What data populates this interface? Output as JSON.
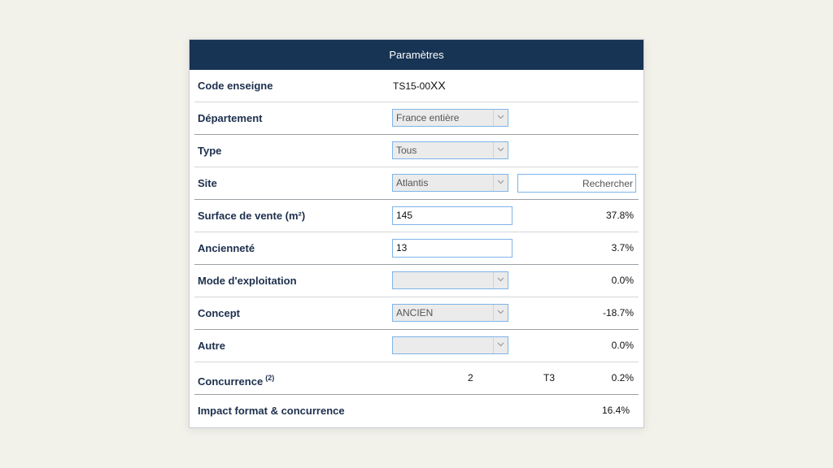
{
  "header": {
    "title": "Paramètres"
  },
  "rows": {
    "code": {
      "label": "Code enseigne",
      "value_prefix": "TS15-00",
      "value_suffix": "XX"
    },
    "departement": {
      "label": "Département",
      "selected": "France entière"
    },
    "type": {
      "label": "Type",
      "selected": "Tous"
    },
    "site": {
      "label": "Site",
      "selected": "Atlantis",
      "search_placeholder": "Rechercher"
    },
    "surface": {
      "label": "Surface de vente (m²)",
      "value": "145",
      "pct": "37.8%"
    },
    "anciennete": {
      "label": "Ancienneté",
      "value": "13",
      "pct": "3.7%"
    },
    "mode": {
      "label": "Mode d'exploitation",
      "selected": "",
      "pct": "0.0%"
    },
    "concept": {
      "label": "Concept",
      "selected": "ANCIEN",
      "pct": "-18.7%"
    },
    "autre": {
      "label": "Autre",
      "selected": "",
      "pct": "0.0%"
    },
    "concurrence": {
      "label": "Concurrence",
      "note": "(2)",
      "count": "2",
      "tier": "T3",
      "pct": "0.2%"
    },
    "impact": {
      "label": "Impact format & concurrence",
      "pct": "16.4%"
    }
  },
  "icons": {
    "dropdown": "chevron-down-icon"
  },
  "colors": {
    "header_bg": "#173454",
    "label_text": "#1c2f4d",
    "field_border": "#7eb4ea"
  }
}
